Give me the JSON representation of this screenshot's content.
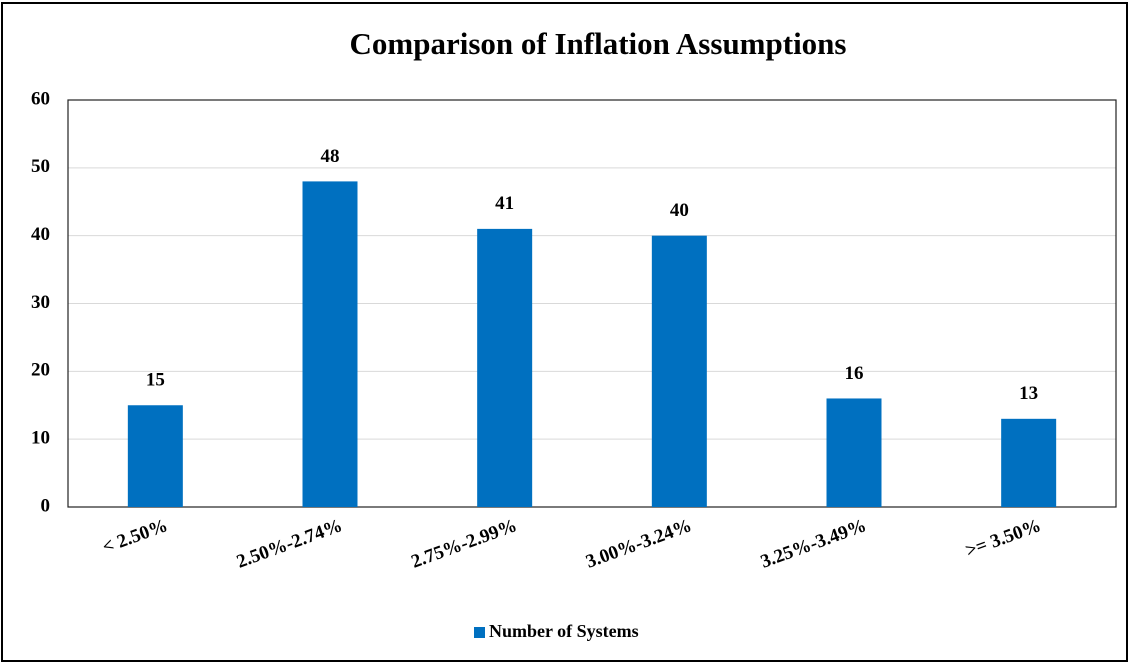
{
  "chart_data": {
    "type": "bar",
    "title": "Comparison of Inflation Assumptions",
    "categories": [
      "< 2.50%",
      "2.50%-2.74%",
      "2.75%-2.99%",
      "3.00%-3.24%",
      "3.25%-3.49%",
      ">= 3.50%"
    ],
    "series": [
      {
        "name": "Number of Systems",
        "color": "#0070c0",
        "values": [
          15,
          48,
          41,
          40,
          16,
          13
        ]
      }
    ],
    "ylim": [
      0,
      60
    ],
    "yticks": [
      0,
      10,
      20,
      30,
      40,
      50,
      60
    ],
    "grid": true,
    "legend": "bottom"
  }
}
